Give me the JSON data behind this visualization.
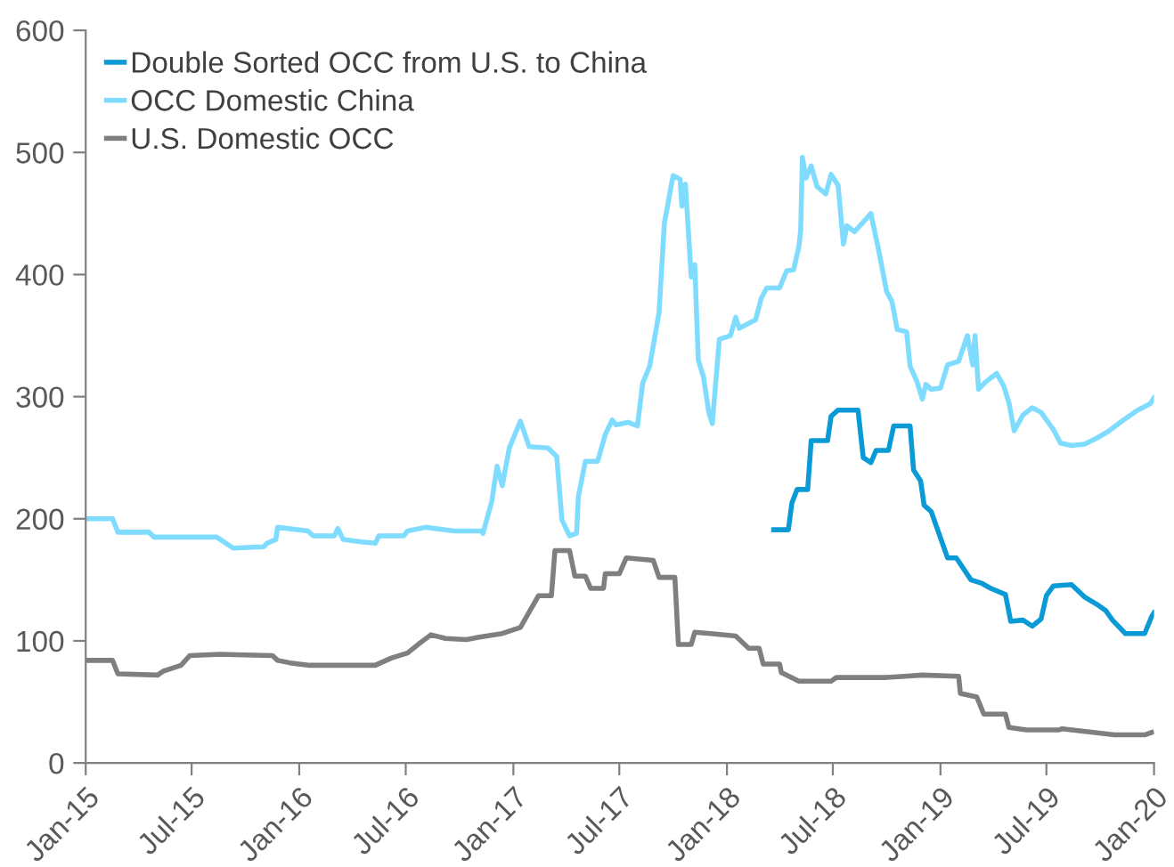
{
  "chart_data": {
    "type": "line",
    "xlim": [
      "2015-01-01",
      "2020-01-01"
    ],
    "ylim": [
      0,
      600
    ],
    "xticks": [
      {
        "value": "2015-01-01",
        "label": "Jan-15"
      },
      {
        "value": "2015-07-01",
        "label": "Jul-15"
      },
      {
        "value": "2016-01-01",
        "label": "Jan-16"
      },
      {
        "value": "2016-07-01",
        "label": "Jul-16"
      },
      {
        "value": "2017-01-01",
        "label": "Jan-17"
      },
      {
        "value": "2017-07-01",
        "label": "Jul-17"
      },
      {
        "value": "2018-01-01",
        "label": "Jan-18"
      },
      {
        "value": "2018-07-01",
        "label": "Jul-18"
      },
      {
        "value": "2019-01-01",
        "label": "Jan-19"
      },
      {
        "value": "2019-07-01",
        "label": "Jul-19"
      },
      {
        "value": "2020-01-01",
        "label": "Jan-20"
      }
    ],
    "yticks": [
      0,
      100,
      200,
      300,
      400,
      500,
      600
    ],
    "grid": false,
    "legend": "top left",
    "marker": "none",
    "line_style": "solid",
    "series": [
      {
        "name": "Double Sorted OCC from U.S. to China",
        "color": "#0a9ad6",
        "x": [
          "2018-03-22",
          "2018-04-16",
          "2018-04-22",
          "2018-05-01",
          "2018-05-19",
          "2018-05-25",
          "2018-06-22",
          "2018-06-28",
          "2018-07-10",
          "2018-08-13",
          "2018-08-22",
          "2018-09-04",
          "2018-09-13",
          "2018-10-04",
          "2018-10-13",
          "2018-11-10",
          "2018-11-16",
          "2018-11-28",
          "2018-12-04",
          "2018-12-16",
          "2019-01-13",
          "2019-01-28",
          "2019-02-22",
          "2019-03-13",
          "2019-03-28",
          "2019-04-22",
          "2019-05-01",
          "2019-05-22",
          "2019-06-07",
          "2019-06-22",
          "2019-07-01",
          "2019-07-13",
          "2019-08-13",
          "2019-09-04",
          "2019-09-25",
          "2019-10-10",
          "2019-10-22",
          "2019-11-13",
          "2019-12-16",
          "2019-12-28",
          "2020-01-01"
        ],
        "values": [
          191,
          191,
          213,
          224,
          224,
          264,
          264,
          284,
          289,
          289,
          250,
          246,
          256,
          256,
          276,
          276,
          240,
          231,
          211,
          206,
          168,
          168,
          150,
          147,
          143,
          138,
          116,
          117,
          112,
          118,
          137,
          145,
          146,
          136,
          130,
          125,
          117,
          106,
          106,
          120,
          123
        ]
      },
      {
        "name": "OCC Domestic China",
        "color": "#80dcff",
        "x": [
          "2015-01-01",
          "2015-02-16",
          "2015-02-25",
          "2015-04-19",
          "2015-04-28",
          "2015-08-13",
          "2015-09-10",
          "2015-11-01",
          "2015-11-07",
          "2015-11-22",
          "2015-11-25",
          "2016-01-16",
          "2016-01-25",
          "2016-03-01",
          "2016-03-07",
          "2016-03-16",
          "2016-04-16",
          "2016-05-10",
          "2016-05-16",
          "2016-06-28",
          "2016-07-04",
          "2016-08-04",
          "2016-09-22",
          "2016-11-07",
          "2016-11-10",
          "2016-11-25",
          "2016-12-04",
          "2016-12-13",
          "2016-12-25",
          "2017-01-13",
          "2017-01-28",
          "2017-03-01",
          "2017-03-16",
          "2017-03-25",
          "2017-04-07",
          "2017-04-19",
          "2017-04-22",
          "2017-05-04",
          "2017-05-25",
          "2017-06-07",
          "2017-06-19",
          "2017-06-25",
          "2017-07-16",
          "2017-08-01",
          "2017-08-10",
          "2017-08-22",
          "2017-09-07",
          "2017-09-16",
          "2017-10-01",
          "2017-10-13",
          "2017-10-16",
          "2017-10-22",
          "2017-11-01",
          "2017-11-07",
          "2017-11-13",
          "2017-11-22",
          "2017-12-01",
          "2017-12-07",
          "2017-12-19",
          "2018-01-07",
          "2018-01-16",
          "2018-01-22",
          "2018-02-19",
          "2018-03-01",
          "2018-03-10",
          "2018-04-01",
          "2018-04-13",
          "2018-04-25",
          "2018-05-04",
          "2018-05-07",
          "2018-05-10",
          "2018-05-16",
          "2018-05-25",
          "2018-06-04",
          "2018-06-19",
          "2018-06-28",
          "2018-07-10",
          "2018-07-19",
          "2018-07-25",
          "2018-08-07",
          "2018-09-04",
          "2018-09-16",
          "2018-10-01",
          "2018-10-10",
          "2018-10-19",
          "2018-11-04",
          "2018-11-10",
          "2018-11-22",
          "2018-12-01",
          "2018-12-07",
          "2018-12-16",
          "2019-01-01",
          "2019-01-13",
          "2019-02-01",
          "2019-02-16",
          "2019-02-25",
          "2019-03-01",
          "2019-03-07",
          "2019-03-19",
          "2019-04-07",
          "2019-04-19",
          "2019-04-28",
          "2019-05-07",
          "2019-05-22",
          "2019-06-07",
          "2019-06-22",
          "2019-07-13",
          "2019-07-25",
          "2019-08-13",
          "2019-09-04",
          "2019-09-25",
          "2019-10-16",
          "2019-11-10",
          "2019-12-04",
          "2019-12-25",
          "2020-01-01"
        ],
        "values": [
          200,
          200,
          189,
          189,
          185,
          185,
          176,
          177,
          180,
          183,
          193,
          190,
          186,
          186,
          192,
          183,
          181,
          180,
          186,
          186,
          190,
          193,
          190,
          190,
          188,
          214,
          243,
          227,
          258,
          280,
          259,
          258,
          251,
          199,
          186,
          188,
          218,
          247,
          247,
          269,
          281,
          277,
          279,
          276,
          311,
          325,
          369,
          442,
          481,
          478,
          456,
          474,
          398,
          408,
          330,
          316,
          287,
          278,
          347,
          350,
          365,
          356,
          363,
          381,
          389,
          389,
          403,
          404,
          423,
          436,
          496,
          479,
          489,
          472,
          466,
          482,
          473,
          425,
          440,
          435,
          450,
          423,
          386,
          378,
          355,
          353,
          325,
          312,
          298,
          310,
          306,
          307,
          326,
          329,
          350,
          326,
          350,
          306,
          312,
          319,
          309,
          295,
          272,
          285,
          291,
          287,
          273,
          262,
          260,
          261,
          266,
          272,
          281,
          289,
          294,
          299
        ]
      },
      {
        "name": "U.S. Domestic OCC",
        "color": "#7f7f7f",
        "x": [
          "2015-01-01",
          "2015-02-16",
          "2015-02-25",
          "2015-05-04",
          "2015-05-13",
          "2015-06-13",
          "2015-06-28",
          "2015-08-19",
          "2015-11-16",
          "2015-11-25",
          "2015-12-16",
          "2016-01-19",
          "2016-05-10",
          "2016-05-19",
          "2016-06-07",
          "2016-07-04",
          "2016-07-22",
          "2016-08-13",
          "2016-09-07",
          "2016-10-13",
          "2016-11-04",
          "2016-12-13",
          "2017-01-13",
          "2017-02-13",
          "2017-03-07",
          "2017-03-13",
          "2017-04-07",
          "2017-04-16",
          "2017-05-04",
          "2017-05-13",
          "2017-06-04",
          "2017-06-07",
          "2017-07-01",
          "2017-07-13",
          "2017-08-28",
          "2017-09-07",
          "2017-10-04",
          "2017-10-10",
          "2017-11-01",
          "2017-11-07",
          "2017-12-04",
          "2018-01-16",
          "2018-02-07",
          "2018-02-25",
          "2018-03-04",
          "2018-04-01",
          "2018-04-04",
          "2018-05-04",
          "2018-06-28",
          "2018-07-07",
          "2018-10-01",
          "2018-11-01",
          "2018-12-01",
          "2019-02-01",
          "2019-02-04",
          "2019-03-04",
          "2019-03-16",
          "2019-04-22",
          "2019-04-28",
          "2019-05-28",
          "2019-07-22",
          "2019-07-28",
          "2019-10-25",
          "2019-12-16",
          "2019-12-28"
        ],
        "values": [
          84,
          84,
          73,
          72,
          75,
          80,
          88,
          89,
          88,
          84,
          82,
          80,
          80,
          82,
          86,
          90,
          97,
          105,
          102,
          101,
          103,
          106,
          111,
          137,
          137,
          174,
          174,
          153,
          153,
          143,
          143,
          155,
          155,
          168,
          166,
          152,
          152,
          97,
          97,
          107,
          106,
          104,
          94,
          94,
          81,
          81,
          74,
          67,
          67,
          70,
          70,
          71,
          72,
          71,
          57,
          54,
          40,
          40,
          29,
          27,
          27,
          28,
          23,
          23,
          25
        ]
      }
    ]
  }
}
